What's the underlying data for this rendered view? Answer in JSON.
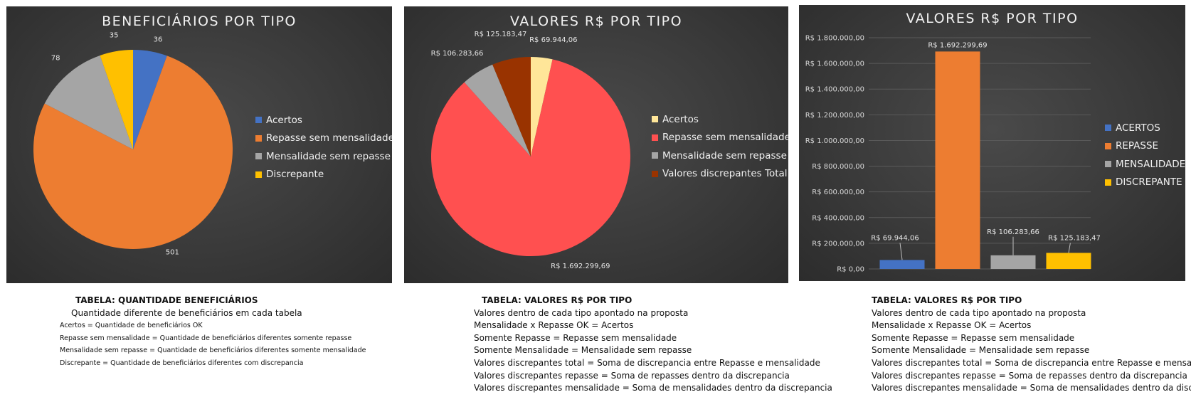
{
  "chart_data": [
    {
      "type": "pie",
      "title": "BENEFICIÁRIOS POR TIPO",
      "categories": [
        "Acertos",
        "Repasse sem mensalidade",
        "Mensalidade sem repasse",
        "Discrepante"
      ],
      "values": [
        36,
        501,
        78,
        35
      ],
      "data_labels": [
        "36",
        "501",
        "78",
        "35"
      ],
      "colors": [
        "#4472c4",
        "#ed7d31",
        "#a5a5a5",
        "#ffc000"
      ],
      "legend_position": "right"
    },
    {
      "type": "pie",
      "title": "VALORES R$ POR TIPO",
      "categories": [
        "Acertos",
        "Repasse sem mensalidade",
        "Mensalidade sem repasse",
        "Valores discrepantes Total"
      ],
      "values": [
        69944.06,
        1692299.69,
        106283.66,
        125183.47
      ],
      "data_labels": [
        "R$ 69.944,06",
        "R$ 1.692.299,69",
        "R$ 106.283,66",
        "R$ 125.183,47"
      ],
      "colors": [
        "#ffe699",
        "#ff5050",
        "#a5a5a5",
        "#993300"
      ],
      "legend_position": "right"
    },
    {
      "type": "bar",
      "title": "VALORES R$ POR TIPO",
      "categories": [
        "ACERTOS",
        "REPASSE",
        "MENSALIDADE",
        "DISCREPANTE"
      ],
      "values": [
        69944.06,
        1692299.69,
        106283.66,
        125183.47
      ],
      "data_labels": [
        "R$ 69.944,06",
        "R$ 1.692.299,69",
        "R$ 106.283,66",
        "R$ 125.183,47"
      ],
      "colors": [
        "#4472c4",
        "#ed7d31",
        "#a5a5a5",
        "#ffc000"
      ],
      "ylim": [
        0,
        1800000
      ],
      "yticks": [
        0,
        200000,
        400000,
        600000,
        800000,
        1000000,
        1200000,
        1400000,
        1600000,
        1800000
      ],
      "ytick_labels": [
        "R$ 0,00",
        "R$ 200.000,00",
        "R$ 400.000,00",
        "R$ 600.000,00",
        "R$ 800.000,00",
        "R$ 1.000.000,00",
        "R$ 1.200.000,00",
        "R$ 1.400.000,00",
        "R$ 1.600.000,00",
        "R$ 1.800.000,00"
      ],
      "grid": true,
      "legend_position": "right"
    }
  ],
  "notes": [
    {
      "title": "TABELA: QUANTIDADE BENEFICIÁRIOS",
      "subtitle": "Quantidade diferente de beneficiários em cada tabela",
      "lines": [
        "Acertos = Quantidade de beneficiários OK",
        "Repasse sem mensalidade = Quantidade de beneficiários diferentes somente repasse",
        "Mensalidade sem repasse = Quantidade de beneficiários diferentes somente mensalidade",
        "Discrepante = Quantidade de beneficiários diferentes com discrepancia"
      ]
    },
    {
      "title": "TABELA: VALORES R$ POR TIPO",
      "lines": [
        "Valores dentro de cada tipo apontado na proposta",
        "Mensalidade x Repasse OK = Acertos",
        "Somente Repasse = Repasse sem mensalidade",
        "Somente Mensalidade = Mensalidade sem repasse",
        "Valores discrepantes total = Soma de discrepancia entre Repasse e mensalidade",
        "Valores discrepantes repasse = Soma de repasses dentro da discrepancia",
        "Valores discrepantes mensalidade = Soma de mensalidades dentro da discrepancia"
      ]
    },
    {
      "title": "TABELA: VALORES R$ POR TIPO",
      "lines": [
        "Valores dentro de cada tipo apontado na proposta",
        "Mensalidade x Repasse OK = Acertos",
        "Somente Repasse = Repasse sem mensalidade",
        "Somente Mensalidade = Mensalidade sem repasse",
        "Valores discrepantes total = Soma de discrepancia entre Repasse e mensalidade",
        "Valores discrepantes repasse = Soma de repasses dentro da discrepancia",
        "Valores discrepantes mensalidade = Soma de mensalidades dentro da discrepancia"
      ]
    }
  ]
}
